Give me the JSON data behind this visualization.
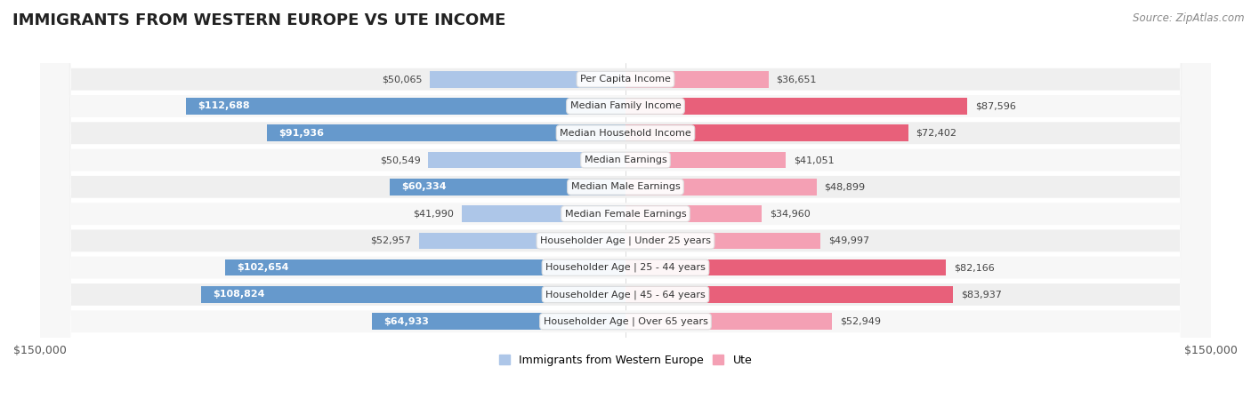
{
  "title": "IMMIGRANTS FROM WESTERN EUROPE VS UTE INCOME",
  "source": "Source: ZipAtlas.com",
  "categories": [
    "Per Capita Income",
    "Median Family Income",
    "Median Household Income",
    "Median Earnings",
    "Median Male Earnings",
    "Median Female Earnings",
    "Householder Age | Under 25 years",
    "Householder Age | 25 - 44 years",
    "Householder Age | 45 - 64 years",
    "Householder Age | Over 65 years"
  ],
  "western_europe": [
    50065,
    112688,
    91936,
    50549,
    60334,
    41990,
    52957,
    102654,
    108824,
    64933
  ],
  "ute": [
    36651,
    87596,
    72402,
    41051,
    48899,
    34960,
    49997,
    82166,
    83937,
    52949
  ],
  "western_europe_labels": [
    "$50,065",
    "$112,688",
    "$91,936",
    "$50,549",
    "$60,334",
    "$41,990",
    "$52,957",
    "$102,654",
    "$108,824",
    "$64,933"
  ],
  "ute_labels": [
    "$36,651",
    "$87,596",
    "$72,402",
    "$41,051",
    "$48,899",
    "$34,960",
    "$49,997",
    "$82,166",
    "$83,937",
    "$52,949"
  ],
  "max_val": 150000,
  "we_color_light": "#adc6e8",
  "we_color_dark": "#6699cc",
  "ute_color_light": "#f4a0b4",
  "ute_color_dark": "#e8607a",
  "row_color_even": "#efefef",
  "row_color_odd": "#f7f7f7",
  "bg_color": "#ffffff",
  "xlabel_left": "$150,000",
  "xlabel_right": "$150,000",
  "legend_we": "Immigrants from Western Europe",
  "legend_ute": "Ute",
  "title_fontsize": 13,
  "source_fontsize": 8.5,
  "label_fontsize": 8,
  "cat_fontsize": 8,
  "inside_threshold": 55000,
  "we_label_inside_threshold": 55000
}
